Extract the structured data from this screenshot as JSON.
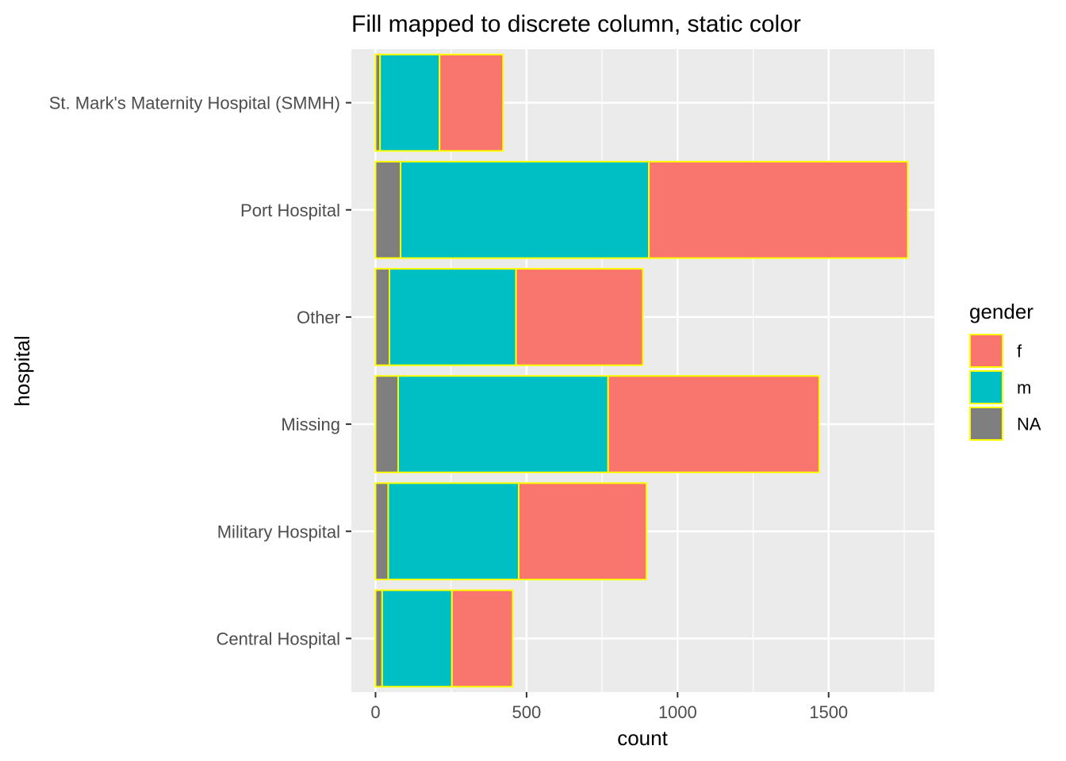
{
  "chart_data": {
    "type": "bar",
    "orientation": "horizontal",
    "stacked": true,
    "title": "Fill mapped to discrete column, static color",
    "xlabel": "count",
    "ylabel": "hospital",
    "xlim": [
      -80,
      1850
    ],
    "xticks": [
      0,
      500,
      1000,
      1500
    ],
    "categories": [
      "St. Mark's Maternity Hospital (SMMH)",
      "Port Hospital",
      "Other",
      "Missing",
      "Military Hospital",
      "Central Hospital"
    ],
    "series": [
      {
        "name": "NA",
        "color": "#7f7f7f",
        "values": [
          15,
          83,
          46,
          75,
          42,
          22
        ]
      },
      {
        "name": "m",
        "color": "#00bfc4",
        "values": [
          197,
          822,
          419,
          695,
          432,
          231
        ]
      },
      {
        "name": "f",
        "color": "#f8766d",
        "values": [
          210,
          857,
          420,
          699,
          423,
          201
        ]
      }
    ],
    "bar_outline_color": "#ffff00",
    "legend": {
      "title": "gender",
      "position": "right",
      "items": [
        {
          "label": "f",
          "color": "#f8766d"
        },
        {
          "label": "m",
          "color": "#00bfc4"
        },
        {
          "label": "NA",
          "color": "#7f7f7f"
        }
      ]
    },
    "panel_background": "#ebebeb",
    "grid": true
  }
}
